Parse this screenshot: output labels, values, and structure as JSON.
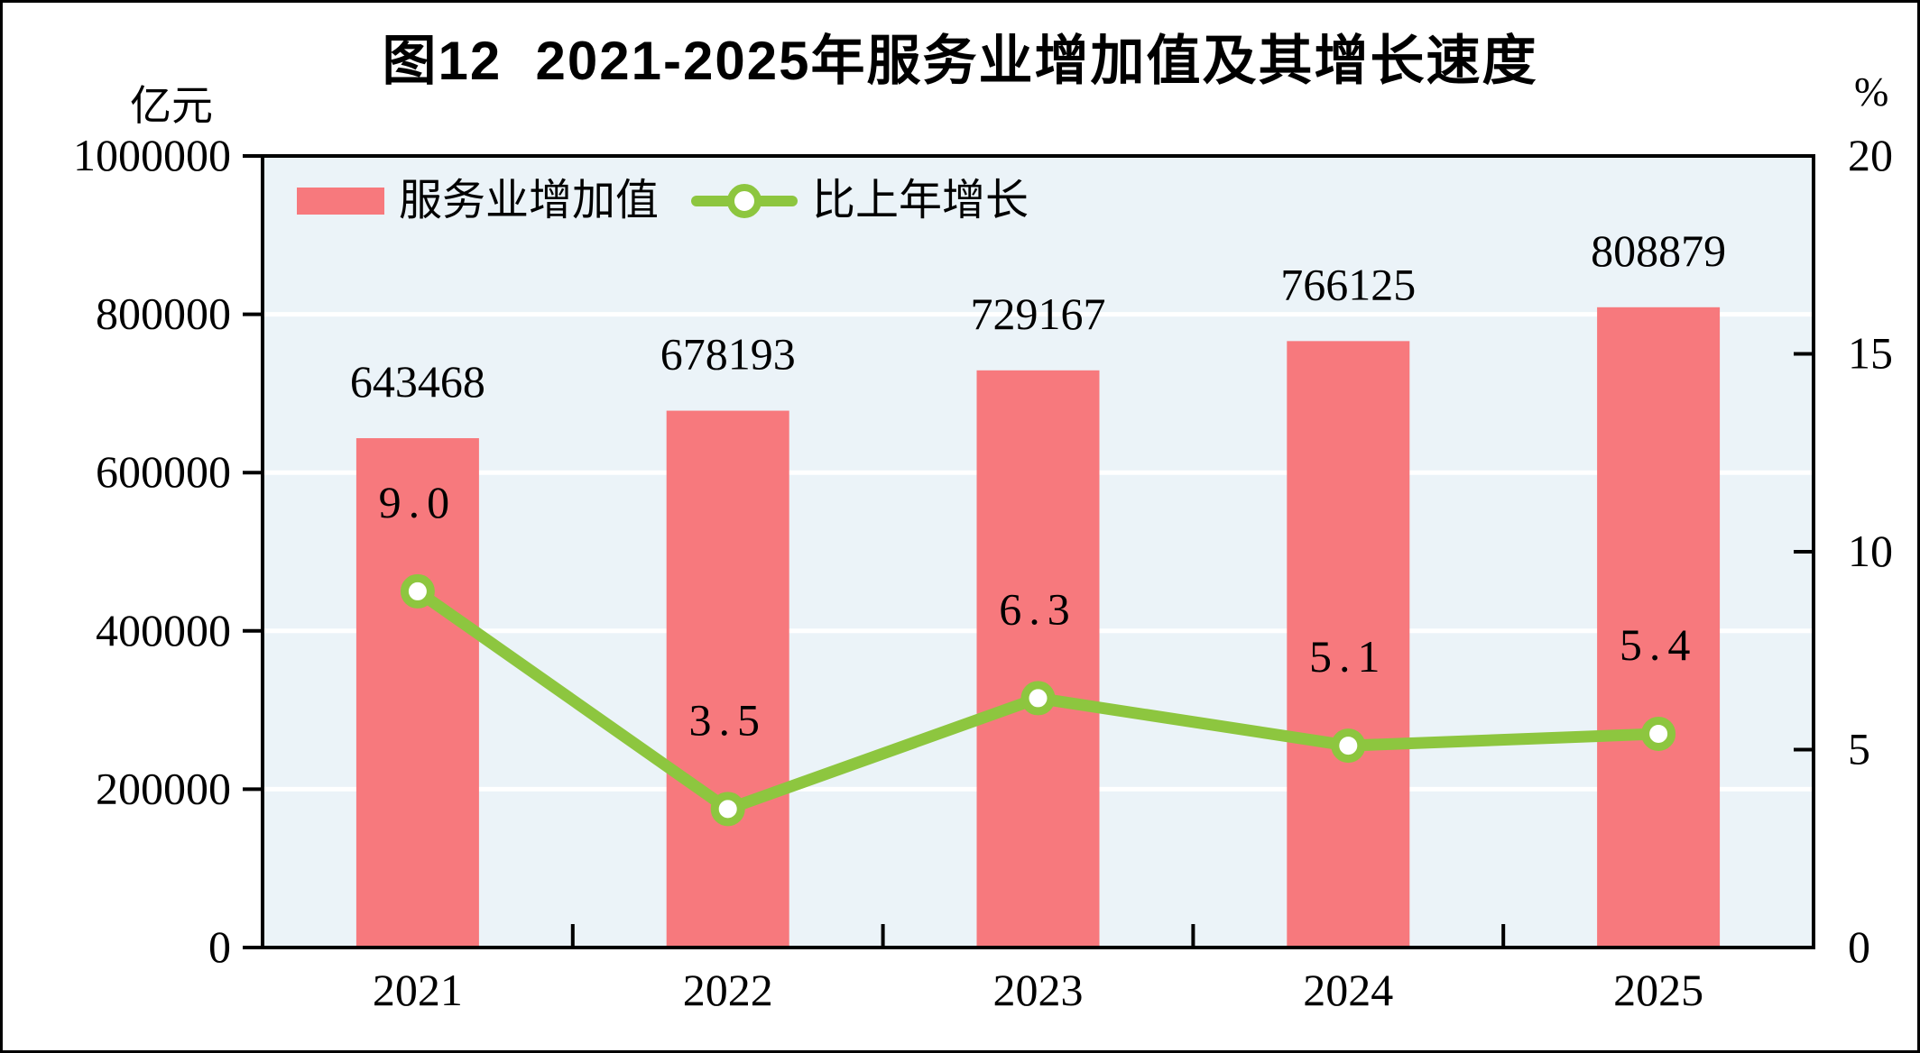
{
  "title": "图12  2021-2025年服务业增加值及其增长速度",
  "left_axis": {
    "unit": "亿元",
    "tick_labels": [
      "1000000",
      "800000",
      "600000",
      "400000",
      "200000",
      "0"
    ],
    "range": [
      0,
      1000000
    ]
  },
  "right_axis": {
    "unit": "%",
    "tick_labels": [
      "20",
      "15",
      "10",
      "5",
      "0"
    ],
    "range": [
      0,
      20
    ]
  },
  "legend": {
    "items": [
      {
        "label": "服务业增加值",
        "type": "bar"
      },
      {
        "label": "比上年增长",
        "type": "line"
      }
    ]
  },
  "chart_data": {
    "type": "bar+line",
    "title": "图12  2021-2025年服务业增加值及其增长速度",
    "categories": [
      "2021",
      "2022",
      "2023",
      "2024",
      "2025"
    ],
    "series": [
      {
        "name": "服务业增加值",
        "type": "bar",
        "axis": "left",
        "color": "#F7797D",
        "values": [
          643468,
          678193,
          729167,
          766125,
          808879
        ],
        "labels": [
          "643468",
          "678193",
          "729167",
          "766125",
          "808879"
        ]
      },
      {
        "name": "比上年增长",
        "type": "line",
        "axis": "right",
        "color": "#8DC63F",
        "marker": "circle-white-fill",
        "values": [
          9.0,
          3.5,
          6.3,
          5.1,
          5.4
        ],
        "labels": [
          "9.0",
          "3.5",
          "6.3",
          "5.1",
          "5.4"
        ]
      }
    ],
    "left_axis_label": "亿元",
    "right_axis_label": "%",
    "left_range": [
      0,
      1000000
    ],
    "right_range": [
      0,
      20
    ],
    "grid": true,
    "grid_color": "#FFFFFF",
    "plot_bg": "#EBF3F8",
    "frame_color": "#000000",
    "text_color": "#000000",
    "legend_position": "top-left-inside"
  }
}
